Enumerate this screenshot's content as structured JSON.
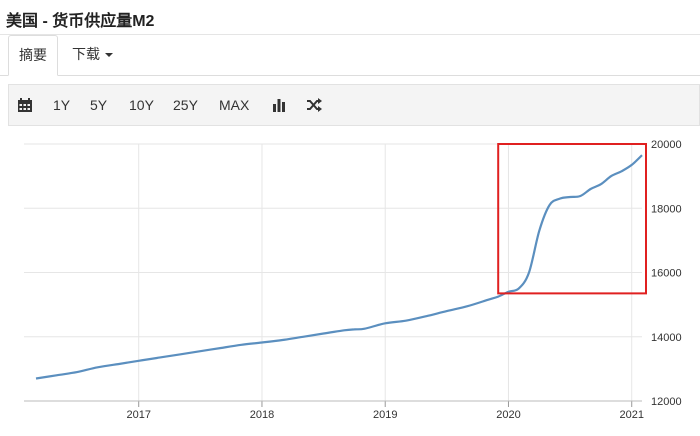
{
  "header": {
    "title": "美国 - 货币供应量M2"
  },
  "tabs": [
    {
      "label": "摘要",
      "active": true
    },
    {
      "label": "下载",
      "active": false
    }
  ],
  "toolbar": {
    "ranges": [
      "1Y",
      "5Y",
      "10Y",
      "25Y",
      "MAX"
    ],
    "icons": [
      "calendar-icon",
      "bar-chart-icon",
      "shuffle-icon"
    ]
  },
  "colors": {
    "line": "#5b8fbf",
    "highlight": "#e02020",
    "grid": "#e6e6e6"
  },
  "chart_data": {
    "type": "line",
    "title": "",
    "xlabel": "",
    "ylabel": "",
    "x_ticks": [
      "2017",
      "2018",
      "2019",
      "2020",
      "2021"
    ],
    "y_ticks": [
      12000,
      14000,
      16000,
      18000,
      20000
    ],
    "xlim": [
      "2016-03",
      "2021-02"
    ],
    "ylim": [
      12000,
      20000
    ],
    "y_axis_position": "right",
    "grid": true,
    "series": [
      {
        "x": [
          "2016-03",
          "2016-05",
          "2016-07",
          "2016-09",
          "2016-11",
          "2017-01",
          "2017-03",
          "2017-05",
          "2017-07",
          "2017-09",
          "2017-11",
          "2018-01",
          "2018-03",
          "2018-05",
          "2018-07",
          "2018-09",
          "2018-10",
          "2018-11",
          "2019-01",
          "2019-03",
          "2019-05",
          "2019-07",
          "2019-09",
          "2019-11",
          "2019-12",
          "2020-01",
          "2020-02",
          "2020-03",
          "2020-04",
          "2020-05",
          "2020-06",
          "2020-07",
          "2020-08",
          "2020-09",
          "2020-10",
          "2020-11",
          "2020-12",
          "2021-01",
          "2021-02"
        ],
        "y": [
          12700,
          12800,
          12900,
          13050,
          13150,
          13250,
          13350,
          13450,
          13550,
          13650,
          13750,
          13820,
          13900,
          14000,
          14100,
          14200,
          14230,
          14250,
          14420,
          14500,
          14640,
          14800,
          14950,
          15150,
          15250,
          15400,
          15500,
          16000,
          17300,
          18100,
          18300,
          18350,
          18380,
          18600,
          18750,
          19000,
          19150,
          19350,
          19650
        ]
      }
    ],
    "annotations": [
      {
        "type": "rectangle",
        "x_from": "2019-12",
        "x_to": "2021-02",
        "y_from": 15350,
        "y_to": 20000
      }
    ]
  }
}
